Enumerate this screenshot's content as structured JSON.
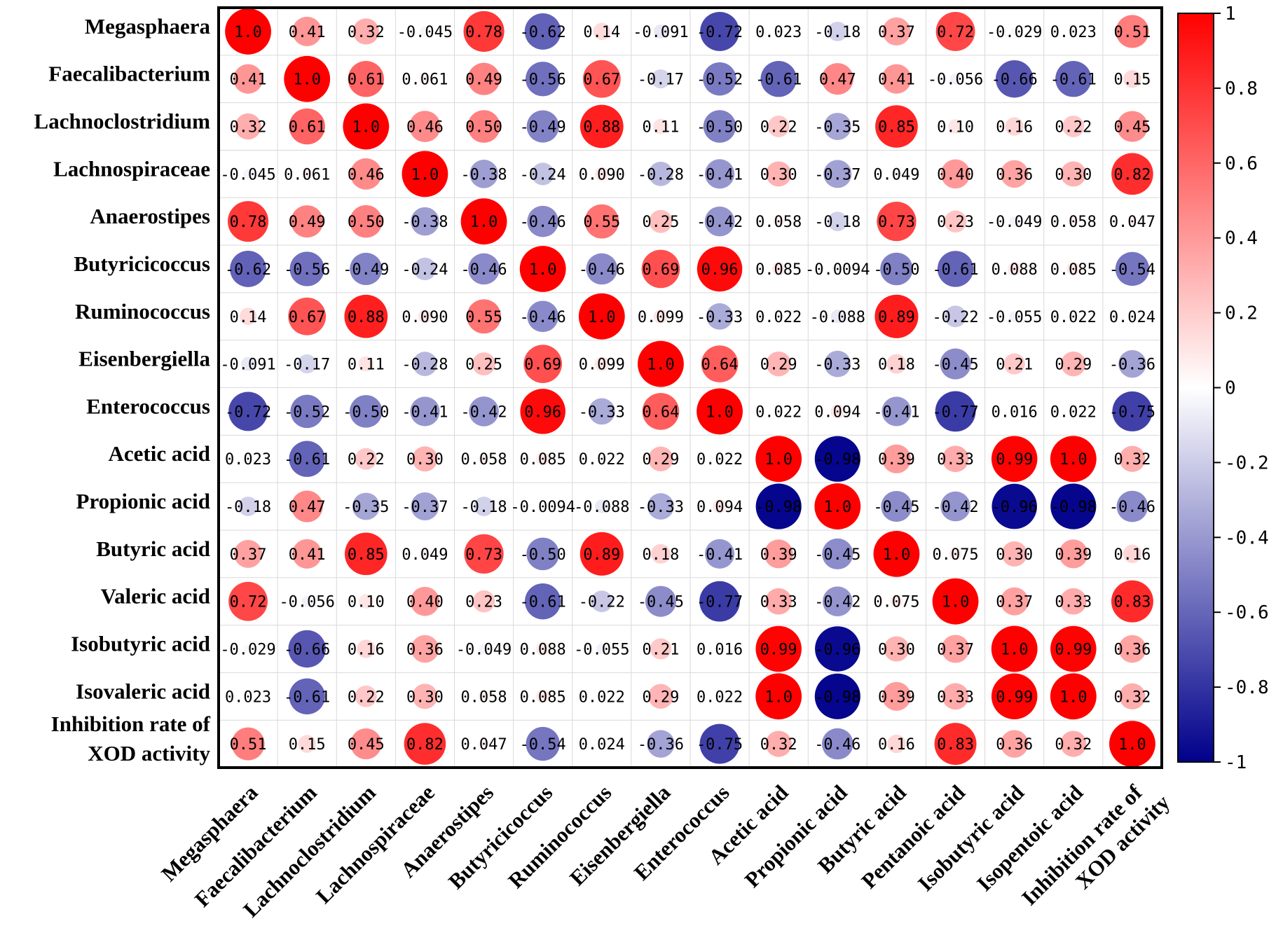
{
  "chart_data": {
    "type": "heatmap",
    "style": "correlation-circles",
    "row_labels": [
      [
        "Megasphaera"
      ],
      [
        "Faecalibacterium"
      ],
      [
        "Lachnoclostridium"
      ],
      [
        "Lachnospiraceae"
      ],
      [
        "Anaerostipes"
      ],
      [
        "Butyricicoccus"
      ],
      [
        "Ruminococcus"
      ],
      [
        "Eisenbergiella"
      ],
      [
        "Enterococcus"
      ],
      [
        "Acetic acid"
      ],
      [
        "Propionic acid"
      ],
      [
        "Butyric acid"
      ],
      [
        "Valeric acid"
      ],
      [
        "Isobutyric acid"
      ],
      [
        "Isovaleric acid"
      ],
      [
        "Inhibition rate of",
        "XOD activity"
      ]
    ],
    "col_labels": [
      [
        "Megasphaera"
      ],
      [
        "Faecalibacterium"
      ],
      [
        "Lachnoclostridium"
      ],
      [
        "Lachnospiraceae"
      ],
      [
        "Anaerostipes"
      ],
      [
        "Butyricicoccus"
      ],
      [
        "Ruminococcus"
      ],
      [
        "Eisenbergiella"
      ],
      [
        "Enterococcus"
      ],
      [
        "Acetic acid"
      ],
      [
        "Propionic acid"
      ],
      [
        "Butyric acid"
      ],
      [
        "Pentanoic acid"
      ],
      [
        "Isobutyric acid"
      ],
      [
        "Isopentoic acid"
      ],
      [
        "Inhibition rate of",
        "XOD activity"
      ]
    ],
    "value_labels": [
      [
        "1.0",
        "0.41",
        "0.32",
        "-0.045",
        "0.78",
        "-0.62",
        "0.14",
        "-0.091",
        "-0.72",
        "0.023",
        "-0.18",
        "0.37",
        "0.72",
        "-0.029",
        "0.023",
        "0.51"
      ],
      [
        "0.41",
        "1.0",
        "0.61",
        "0.061",
        "0.49",
        "-0.56",
        "0.67",
        "-0.17",
        "-0.52",
        "-0.61",
        "0.47",
        "0.41",
        "-0.056",
        "-0.66",
        "-0.61",
        "0.15"
      ],
      [
        "0.32",
        "0.61",
        "1.0",
        "0.46",
        "0.50",
        "-0.49",
        "0.88",
        "0.11",
        "-0.50",
        "0.22",
        "-0.35",
        "0.85",
        "0.10",
        "0.16",
        "0.22",
        "0.45"
      ],
      [
        "-0.045",
        "0.061",
        "0.46",
        "1.0",
        "-0.38",
        "-0.24",
        "0.090",
        "-0.28",
        "-0.41",
        "0.30",
        "-0.37",
        "0.049",
        "0.40",
        "0.36",
        "0.30",
        "0.82"
      ],
      [
        "0.78",
        "0.49",
        "0.50",
        "-0.38",
        "1.0",
        "-0.46",
        "0.55",
        "0.25",
        "-0.42",
        "0.058",
        "-0.18",
        "0.73",
        "0.23",
        "-0.049",
        "0.058",
        "0.047"
      ],
      [
        "-0.62",
        "-0.56",
        "-0.49",
        "-0.24",
        "-0.46",
        "1.0",
        "-0.46",
        "0.69",
        "0.96",
        "0.085",
        "-0.0094",
        "-0.50",
        "-0.61",
        "0.088",
        "0.085",
        "-0.54"
      ],
      [
        "0.14",
        "0.67",
        "0.88",
        "0.090",
        "0.55",
        "-0.46",
        "1.0",
        "0.099",
        "-0.33",
        "0.022",
        "-0.088",
        "0.89",
        "-0.22",
        "-0.055",
        "0.022",
        "0.024"
      ],
      [
        "-0.091",
        "-0.17",
        "0.11",
        "-0.28",
        "0.25",
        "0.69",
        "0.099",
        "1.0",
        "0.64",
        "0.29",
        "-0.33",
        "0.18",
        "-0.45",
        "0.21",
        "0.29",
        "-0.36"
      ],
      [
        "-0.72",
        "-0.52",
        "-0.50",
        "-0.41",
        "-0.42",
        "0.96",
        "-0.33",
        "0.64",
        "1.0",
        "0.022",
        "0.094",
        "-0.41",
        "-0.77",
        "0.016",
        "0.022",
        "-0.75"
      ],
      [
        "0.023",
        "-0.61",
        "0.22",
        "0.30",
        "0.058",
        "0.085",
        "0.022",
        "0.29",
        "0.022",
        "1.0",
        "-0.98",
        "0.39",
        "0.33",
        "0.99",
        "1.0",
        "0.32"
      ],
      [
        "-0.18",
        "0.47",
        "-0.35",
        "-0.37",
        "-0.18",
        "-0.0094",
        "-0.088",
        "-0.33",
        "0.094",
        "-0.98",
        "1.0",
        "-0.45",
        "-0.42",
        "-0.96",
        "-0.98",
        "-0.46"
      ],
      [
        "0.37",
        "0.41",
        "0.85",
        "0.049",
        "0.73",
        "-0.50",
        "0.89",
        "0.18",
        "-0.41",
        "0.39",
        "-0.45",
        "1.0",
        "0.075",
        "0.30",
        "0.39",
        "0.16"
      ],
      [
        "0.72",
        "-0.056",
        "0.10",
        "0.40",
        "0.23",
        "-0.61",
        "-0.22",
        "-0.45",
        "-0.77",
        "0.33",
        "-0.42",
        "0.075",
        "1.0",
        "0.37",
        "0.33",
        "0.83"
      ],
      [
        "-0.029",
        "-0.66",
        "0.16",
        "0.36",
        "-0.049",
        "0.088",
        "-0.055",
        "0.21",
        "0.016",
        "0.99",
        "-0.96",
        "0.30",
        "0.37",
        "1.0",
        "0.99",
        "0.36"
      ],
      [
        "0.023",
        "-0.61",
        "0.22",
        "0.30",
        "0.058",
        "0.085",
        "0.022",
        "0.29",
        "0.022",
        "1.0",
        "-0.98",
        "0.39",
        "0.33",
        "0.99",
        "1.0",
        "0.32"
      ],
      [
        "0.51",
        "0.15",
        "0.45",
        "0.82",
        "0.047",
        "-0.54",
        "0.024",
        "-0.36",
        "-0.75",
        "0.32",
        "-0.46",
        "0.16",
        "0.83",
        "0.36",
        "0.32",
        "1.0"
      ]
    ],
    "colorbar": {
      "range": [
        -1,
        1
      ],
      "ticks": [
        "1",
        "0.8",
        "0.6",
        "0.4",
        "0.2",
        "0",
        "-0.2",
        "-0.4",
        "-0.6",
        "-0.8",
        "-1"
      ],
      "tick_values": [
        1,
        0.8,
        0.6,
        0.4,
        0.2,
        0,
        -0.2,
        -0.4,
        -0.6,
        -0.8,
        -1
      ],
      "colors": {
        "positive": "#ff0000",
        "zero": "#ffffff",
        "negative": "#00008b"
      }
    },
    "grid": true,
    "legend_position": "right"
  }
}
